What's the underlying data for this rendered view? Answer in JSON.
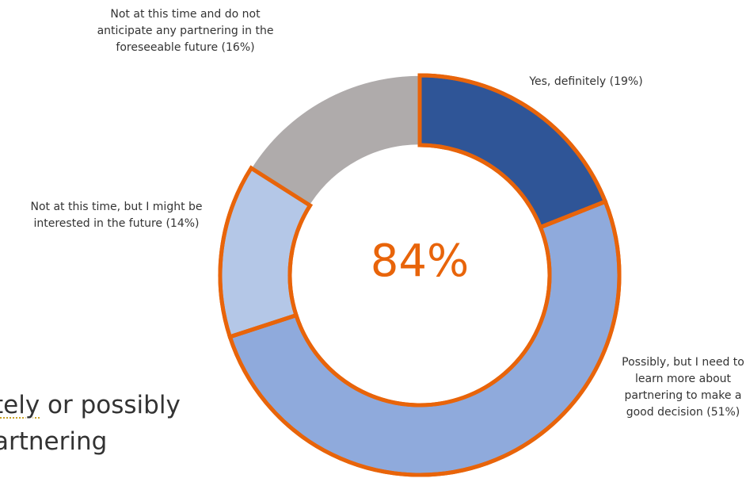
{
  "chart_data": {
    "type": "donut",
    "center_label": "84%",
    "slices": [
      {
        "label": "Yes, definitely (19%)",
        "value": 19,
        "color": "#2F5597"
      },
      {
        "label": "Possibly, but I need to learn more about partnering to make a good decision (51%)",
        "value": 51,
        "color": "#8FAADC"
      },
      {
        "label": "Not at this time, but I might be interested in the future (14%)",
        "value": 14,
        "color": "#B4C7E7"
      },
      {
        "label": "Not at this time and do not anticipate any partnering in the foreseeable future (16%)",
        "value": 16,
        "color": "#AFABAB"
      }
    ],
    "highlight_outline_color": "#E8640A",
    "highlighted_slices": [
      0,
      1,
      2
    ]
  },
  "background_text": {
    "line1_underlined": "tely",
    "line1_rest": " or possibly",
    "line2": "artnering"
  }
}
